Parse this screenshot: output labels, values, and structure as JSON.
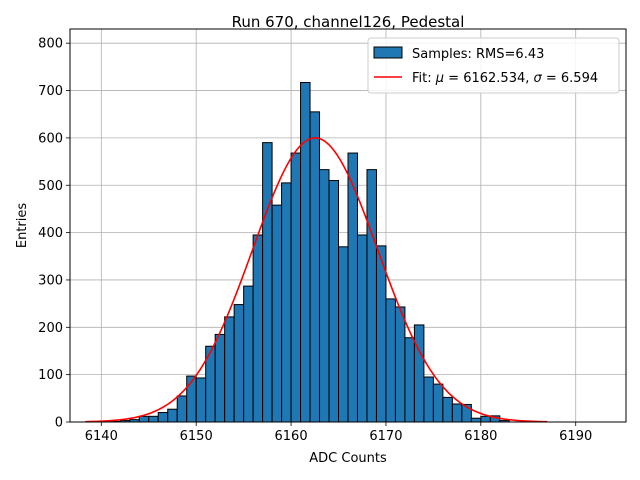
{
  "chart_data": {
    "type": "bar",
    "title": "Run 670, channel126, Pedestal",
    "xlabel": "ADC Counts",
    "ylabel": "Entries",
    "xlim": [
      6136.7,
      6195.3
    ],
    "ylim": [
      0,
      830
    ],
    "xticks": [
      6140,
      6150,
      6160,
      6170,
      6180,
      6190
    ],
    "yticks": [
      0,
      100,
      200,
      300,
      400,
      500,
      600,
      700,
      800
    ],
    "grid": true,
    "legend_position": "top-right",
    "histogram": {
      "name": "Samples: RMS=6.43",
      "color": "#1f77b4",
      "edgecolor": "#000000",
      "bin_width": 1,
      "bin_starts": [
        6141,
        6142,
        6143,
        6144,
        6145,
        6146,
        6147,
        6148,
        6149,
        6150,
        6151,
        6152,
        6153,
        6154,
        6155,
        6156,
        6157,
        6158,
        6159,
        6160,
        6161,
        6162,
        6163,
        6164,
        6165,
        6166,
        6167,
        6168,
        6169,
        6170,
        6171,
        6172,
        6173,
        6174,
        6175,
        6176,
        6177,
        6178,
        6179,
        6180,
        6181,
        6182
      ],
      "values": [
        1,
        3,
        5,
        12,
        12,
        20,
        27,
        55,
        97,
        93,
        160,
        185,
        222,
        248,
        287,
        395,
        590,
        458,
        505,
        568,
        717,
        655,
        533,
        510,
        370,
        568,
        395,
        533,
        372,
        260,
        243,
        178,
        205,
        95,
        80,
        52,
        38,
        37,
        8,
        12,
        13,
        3
      ]
    },
    "fit": {
      "color": "#ff0000",
      "label_prefix": "Fit: ",
      "mu_symbol": "μ",
      "mu_text": " = 6162.534, ",
      "sigma_symbol": "σ",
      "sigma_text": " = 6.594",
      "mu": 6162.534,
      "sigma": 6.594,
      "amplitude": 600,
      "x_range": [
        6138.3,
        6187
      ]
    }
  }
}
